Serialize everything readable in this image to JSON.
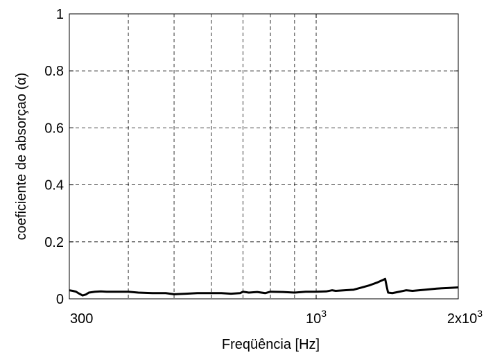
{
  "chart_data": {
    "type": "line",
    "title": "",
    "xlabel": "Freqüência [Hz]",
    "ylabel": "coeficiente de absorçao (α)",
    "x_scale": "log",
    "xlim": [
      300,
      2000
    ],
    "ylim": [
      0,
      1
    ],
    "x_ticks": [
      {
        "value": 300,
        "label": "300",
        "sup": ""
      },
      {
        "value": 1000,
        "label": "10",
        "sup": "3"
      },
      {
        "value": 2000,
        "label": "2x10",
        "sup": "3"
      }
    ],
    "y_ticks": [
      {
        "value": 0,
        "label": "0"
      },
      {
        "value": 0.2,
        "label": "0.2"
      },
      {
        "value": 0.4,
        "label": "0.4"
      },
      {
        "value": 0.6,
        "label": "0.6"
      },
      {
        "value": 0.8,
        "label": "0.8"
      },
      {
        "value": 1,
        "label": "1"
      }
    ],
    "x_grid": [
      400,
      500,
      600,
      700,
      800,
      900,
      1000
    ],
    "y_grid": [
      0.2,
      0.4,
      0.6,
      0.8
    ],
    "grid": true,
    "series": [
      {
        "color": "#000000",
        "x": [
          300,
          305,
          310,
          315,
          320,
          325,
          330,
          340,
          350,
          360,
          380,
          400,
          420,
          450,
          480,
          500,
          530,
          560,
          600,
          630,
          660,
          690,
          700,
          720,
          750,
          780,
          800,
          850,
          900,
          950,
          1000,
          1050,
          1080,
          1100,
          1150,
          1200,
          1250,
          1300,
          1350,
          1380,
          1400,
          1410,
          1420,
          1450,
          1500,
          1550,
          1600,
          1700,
          1800,
          1900,
          2000
        ],
        "y": [
          0.03,
          0.028,
          0.025,
          0.018,
          0.012,
          0.015,
          0.022,
          0.025,
          0.026,
          0.025,
          0.025,
          0.025,
          0.022,
          0.02,
          0.02,
          0.016,
          0.018,
          0.02,
          0.02,
          0.02,
          0.018,
          0.02,
          0.025,
          0.022,
          0.024,
          0.02,
          0.025,
          0.024,
          0.022,
          0.025,
          0.025,
          0.026,
          0.03,
          0.028,
          0.03,
          0.032,
          0.04,
          0.048,
          0.058,
          0.065,
          0.07,
          0.045,
          0.022,
          0.02,
          0.025,
          0.03,
          0.028,
          0.032,
          0.036,
          0.038,
          0.04
        ]
      }
    ]
  }
}
